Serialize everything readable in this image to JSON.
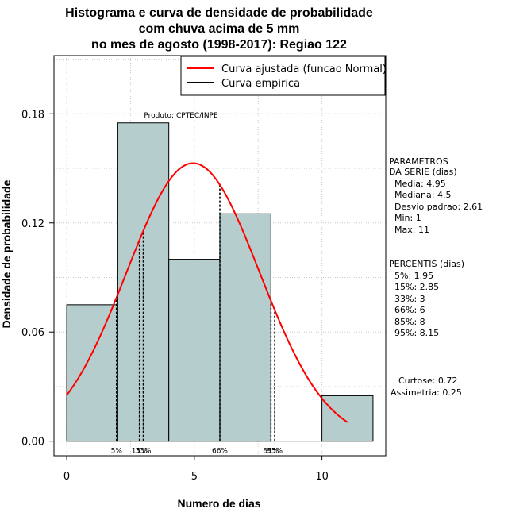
{
  "chart_data": {
    "type": "bar",
    "title_lines": [
      "Histograma e curva de densidade de probabilidade",
      "com chuva acima de 5 mm",
      "no mes de agosto (1998-2017): Regiao 122"
    ],
    "xlabel": "Numero de dias",
    "ylabel": "Densidade de probabilidade",
    "xlim": [
      -0.5,
      12.5
    ],
    "ylim": [
      -0.008,
      0.212
    ],
    "x_ticks": [
      0,
      5,
      10
    ],
    "y_ticks": [
      0.0,
      0.06,
      0.12,
      0.18
    ],
    "y_tick_labels": [
      "0.00",
      "0.06",
      "0.12",
      "0.18"
    ],
    "grid": true,
    "bins": [
      {
        "from": 0,
        "to": 2,
        "density": 0.075
      },
      {
        "from": 2,
        "to": 4,
        "density": 0.175
      },
      {
        "from": 4,
        "to": 6,
        "density": 0.1
      },
      {
        "from": 6,
        "to": 8,
        "density": 0.125
      },
      {
        "from": 8,
        "to": 10,
        "density": 0.0
      },
      {
        "from": 10,
        "to": 12,
        "density": 0.025
      }
    ],
    "bar_fill": "#b5cecd",
    "normal_curve": {
      "mean": 4.95,
      "sd": 2.61,
      "x_from": 0,
      "x_to": 11,
      "color": "#ff0000"
    },
    "percentile_lines": [
      {
        "label": "5%",
        "x": 1.95
      },
      {
        "label": "15%",
        "x": 2.85
      },
      {
        "label": "33%",
        "x": 3
      },
      {
        "label": "66%",
        "x": 6
      },
      {
        "label": "85%",
        "x": 8
      },
      {
        "label": "95%",
        "x": 8.15
      }
    ],
    "legend": {
      "position": "top-right",
      "entries": [
        {
          "label": "Curva ajustada (funcao Normal)",
          "color": "#ff0000"
        },
        {
          "label": "Curva empirica",
          "color": "#000000"
        }
      ]
    },
    "product_label": "Produto: CPTEC/INPE",
    "parameters": {
      "header_lines": [
        "PARAMETROS",
        "DA SERIE (dias)"
      ],
      "lines": [
        "Media: 4.95",
        "Mediana: 4.5",
        "Desvio padrao: 2.61",
        "Min: 1",
        "Max: 11"
      ]
    },
    "percentis": {
      "header": "PERCENTIS (dias)",
      "lines": [
        "5%: 1.95",
        "15%: 2.85",
        "33%: 3",
        "66%: 6",
        "85%: 8",
        "95%: 8.15"
      ]
    },
    "shape": {
      "lines": [
        "Curtose: 0.72",
        "Assimetria: 0.25"
      ]
    }
  }
}
